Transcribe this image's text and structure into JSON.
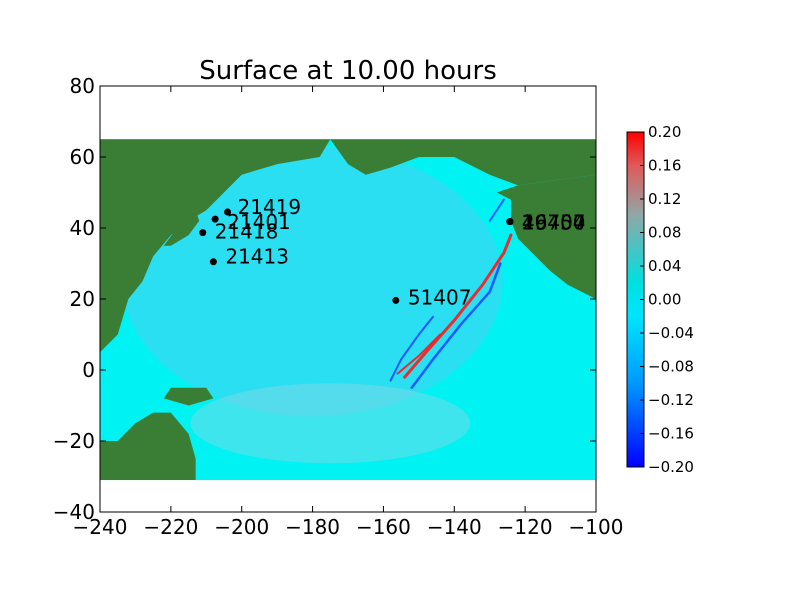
{
  "chart_data": {
    "type": "heatmap",
    "title": "Surface at 10.00 hours",
    "xlabel": "",
    "ylabel": "",
    "xlim": [
      -240,
      -100
    ],
    "ylim": [
      -40,
      80
    ],
    "xticks": [
      -240,
      -220,
      -200,
      -180,
      -160,
      -140,
      -120,
      -100
    ],
    "xtick_labels": [
      "−240",
      "−220",
      "−200",
      "−180",
      "−160",
      "−140",
      "−120",
      "−100"
    ],
    "yticks": [
      -40,
      -20,
      0,
      20,
      40,
      60,
      80
    ],
    "ytick_labels": [
      "−40",
      "−20",
      "0",
      "20",
      "40",
      "60",
      "80"
    ],
    "grid": false,
    "data_extent": {
      "x": [
        -240,
        -100
      ],
      "y": [
        -31,
        65
      ]
    },
    "colors": {
      "land": "#3a7d35",
      "ocean": "#00f2f2",
      "wave_red": "#ff1a1a",
      "wave_blue": "#1a4dff",
      "marker": "#000000"
    },
    "colorbar": {
      "range": [
        -0.2,
        0.2
      ],
      "ticks": [
        -0.2,
        -0.16,
        -0.12,
        -0.08,
        -0.04,
        0.0,
        0.04,
        0.08,
        0.12,
        0.16,
        0.2
      ],
      "tick_labels": [
        "−0.20",
        "−0.16",
        "−0.12",
        "−0.08",
        "−0.04",
        "0.00",
        "0.04",
        "0.08",
        "0.12",
        "0.16",
        "0.20"
      ],
      "colors": [
        "#0000ff",
        "#00e5ff",
        "#8fa8a8",
        "#ff0000"
      ]
    },
    "gauges": [
      {
        "label": "21419",
        "x": -204,
        "y": 44.5
      },
      {
        "label": "21401",
        "x": -207.5,
        "y": 42.5
      },
      {
        "label": "21418",
        "x": -211,
        "y": 38.7
      },
      {
        "label": "21413",
        "x": -208,
        "y": 30.5
      },
      {
        "label": "51407",
        "x": -156.5,
        "y": 19.6
      },
      {
        "label": "1",
        "x": -124.3,
        "y": 41.8
      },
      {
        "label": "2",
        "x": -124.3,
        "y": 41.8
      },
      {
        "label": "46407",
        "x": -124.3,
        "y": 41.8
      },
      {
        "label": "46404",
        "x": -124.3,
        "y": 41.8
      },
      {
        "label": "19750",
        "x": -124.3,
        "y": 41.8
      }
    ]
  }
}
